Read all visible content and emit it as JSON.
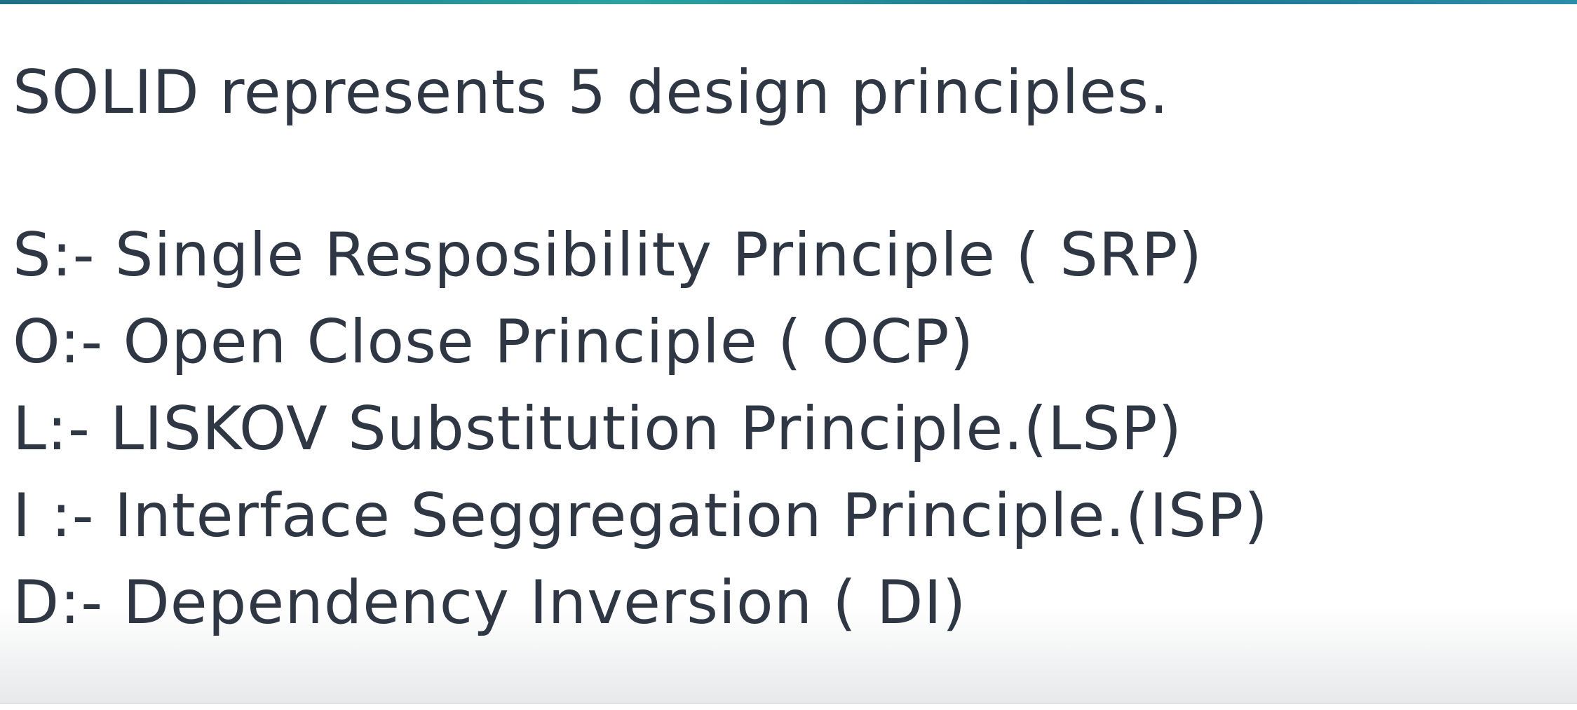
{
  "slide": {
    "title": "SOLID represents 5 design principles.",
    "principles": [
      "S:- Single Resposibility Principle ( SRP)",
      "O:- Open Close Principle ( OCP)",
      "L:- LISKOV Substitution Principle.(LSP)",
      "I :- Interface Seggregation Principle.(ISP)",
      "D:- Dependency Inversion ( DI)"
    ]
  },
  "colors": {
    "text": "#2f3744",
    "background": "#ffffff",
    "top_strip": "#1f6f86"
  }
}
